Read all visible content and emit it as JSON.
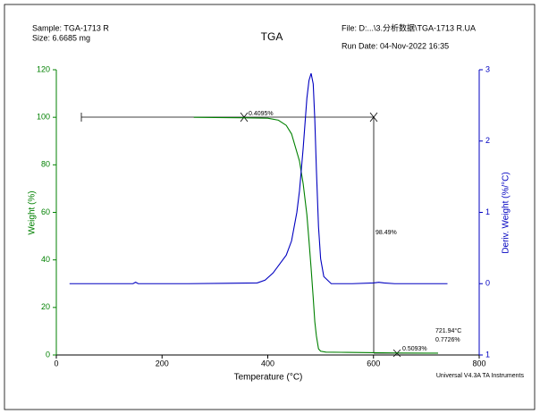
{
  "chart_data": {
    "type": "line",
    "title": "TGA",
    "header": [
      "Sample: TGA-1713 R",
      "Size:  6.6685 mg",
      "File: D:...\\3.分析数据\\TGA-1713 R.UA",
      "Run Date: 04-Nov-2022 16:35"
    ],
    "x_label": "Temperature (°C)",
    "y_label": "Weight (%)",
    "y2_label": "Deriv. Weight (%/°C)",
    "footer": "Universal V4.3A TA Instruments",
    "annotations": [
      "0.4095%",
      "98.49%",
      "0.5093%",
      "721.94°C",
      "0.7726%"
    ],
    "xlim": [
      0,
      800
    ],
    "xticks": [
      0,
      200,
      400,
      600,
      800
    ],
    "ylim": [
      0,
      120
    ],
    "yticks": [
      0,
      20,
      40,
      60,
      80,
      100,
      120
    ],
    "y2lim": [
      -1,
      3
    ],
    "y2ticks": [
      {
        "value": -1,
        "label": "1"
      },
      0,
      1,
      2,
      3
    ],
    "series": [
      {
        "color": "#008000",
        "x": [
          260,
          300,
          350,
          400,
          420,
          435,
          445,
          460,
          467,
          474,
          478,
          482,
          486,
          489,
          492,
          496,
          500,
          510,
          550,
          600,
          650,
          700,
          722
        ],
        "values": [
          100,
          99.9,
          99.8,
          99.6,
          98.8,
          96.6,
          93,
          81.6,
          72,
          59,
          48,
          36.5,
          24,
          14,
          8,
          2.6,
          1.6,
          1.2,
          1.1,
          0.95,
          0.85,
          0.78,
          0.77
        ]
      },
      {
        "color": "#0000c0",
        "axis": "y2",
        "x": [
          25,
          100,
          145,
          150,
          155,
          250,
          380,
          395,
          410,
          425,
          435,
          445,
          455,
          460,
          467,
          474,
          478,
          482,
          486,
          489,
          492,
          496,
          500,
          506,
          520,
          560,
          600,
          610,
          620,
          640,
          700,
          740
        ],
        "values": [
          0,
          0,
          0,
          0.02,
          0,
          0,
          0.01,
          0.05,
          0.15,
          0.3,
          0.4,
          0.6,
          1,
          1.3,
          1.9,
          2.6,
          2.85,
          2.95,
          2.8,
          2.3,
          1.6,
          0.8,
          0.35,
          0.1,
          0,
          0,
          0.01,
          0.02,
          0.01,
          0,
          0,
          0
        ]
      }
    ]
  }
}
